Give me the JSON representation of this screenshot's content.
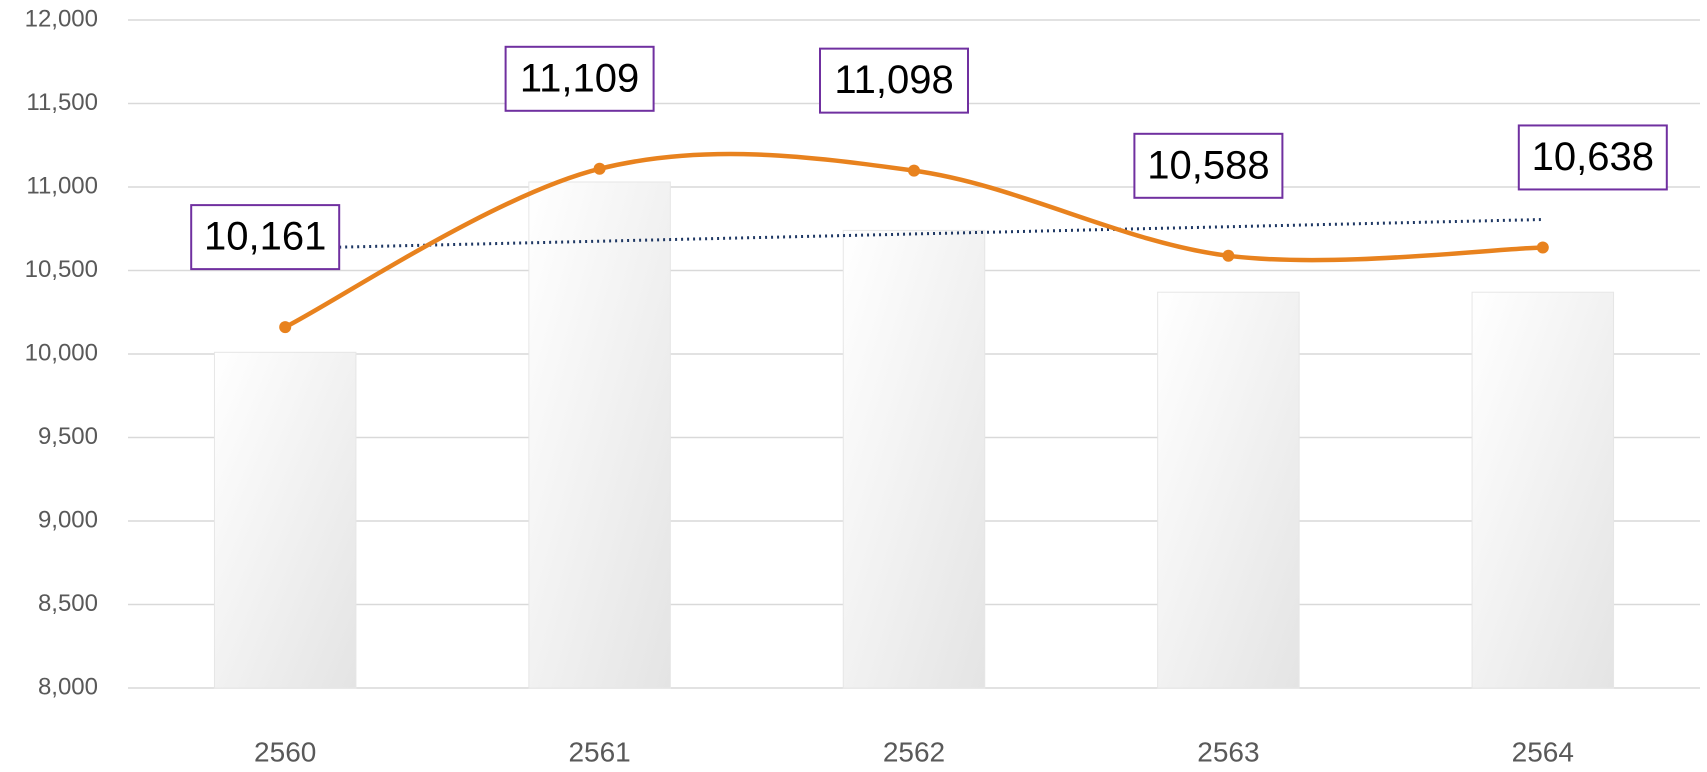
{
  "chart_data": {
    "type": "combo",
    "categories": [
      "2560",
      "2561",
      "2562",
      "2563",
      "2564"
    ],
    "series": [
      {
        "type": "bar",
        "color": "#e6e6e6",
        "values": [
          10010,
          11030,
          10740,
          10370,
          10370
        ]
      },
      {
        "type": "line",
        "color": "#e8821e",
        "smooth": true,
        "values": [
          10161,
          11109,
          11098,
          10588,
          10638
        ],
        "value_labels": [
          "10,161",
          "11,109",
          "11,098",
          "10,588",
          "10,638"
        ],
        "label_border_color": "#7030a0",
        "trendline": true,
        "trendline_color": "#1f3864"
      }
    ],
    "ylim": [
      8000,
      12000
    ],
    "yticks": [
      {
        "value": 8000,
        "label": "8,000"
      },
      {
        "value": 8500,
        "label": "8,500"
      },
      {
        "value": 9000,
        "label": "9,000"
      },
      {
        "value": 9500,
        "label": "9,500"
      },
      {
        "value": 10000,
        "label": "10,000"
      },
      {
        "value": 10500,
        "label": "10,500"
      },
      {
        "value": 11000,
        "label": "11,000"
      },
      {
        "value": 11500,
        "label": "11,500"
      },
      {
        "value": 12000,
        "label": "12,000"
      }
    ],
    "grid": true
  }
}
